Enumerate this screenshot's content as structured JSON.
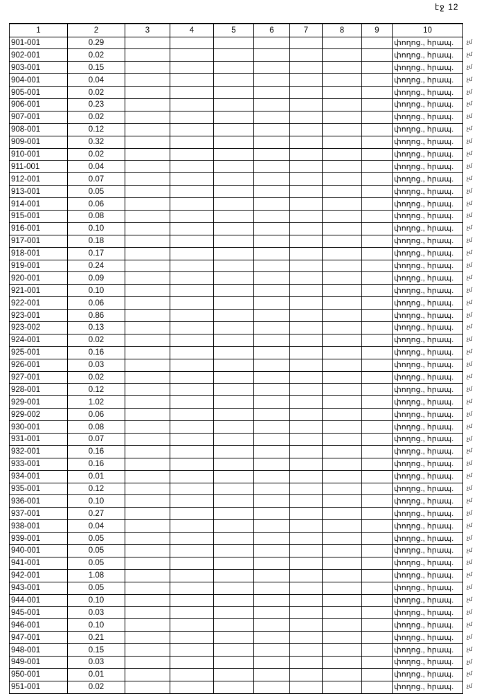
{
  "page_number": "էջ 12",
  "table": {
    "headers": [
      "1",
      "2",
      "3",
      "4",
      "5",
      "6",
      "7",
      "8",
      "9",
      "10"
    ],
    "col10_text": "փողոց., հրապ.",
    "margin_mark": "չմ",
    "rows": [
      [
        "901-001",
        "0.29"
      ],
      [
        "902-001",
        "0.02"
      ],
      [
        "903-001",
        "0.15"
      ],
      [
        "904-001",
        "0.04"
      ],
      [
        "905-001",
        "0.02"
      ],
      [
        "906-001",
        "0.23"
      ],
      [
        "907-001",
        "0.02"
      ],
      [
        "908-001",
        "0.12"
      ],
      [
        "909-001",
        "0.32"
      ],
      [
        "910-001",
        "0.02"
      ],
      [
        "911-001",
        "0.04"
      ],
      [
        "912-001",
        "0.07"
      ],
      [
        "913-001",
        "0.05"
      ],
      [
        "914-001",
        "0.06"
      ],
      [
        "915-001",
        "0.08"
      ],
      [
        "916-001",
        "0.10"
      ],
      [
        "917-001",
        "0.18"
      ],
      [
        "918-001",
        "0.17"
      ],
      [
        "919-001",
        "0.24"
      ],
      [
        "920-001",
        "0.09"
      ],
      [
        "921-001",
        "0.10"
      ],
      [
        "922-001",
        "0.06"
      ],
      [
        "923-001",
        "0.86"
      ],
      [
        "923-002",
        "0.13"
      ],
      [
        "924-001",
        "0.02"
      ],
      [
        "925-001",
        "0.16"
      ],
      [
        "926-001",
        "0.03"
      ],
      [
        "927-001",
        "0.02"
      ],
      [
        "928-001",
        "0.12"
      ],
      [
        "929-001",
        "1.02"
      ],
      [
        "929-002",
        "0.06"
      ],
      [
        "930-001",
        "0.08"
      ],
      [
        "931-001",
        "0.07"
      ],
      [
        "932-001",
        "0.16"
      ],
      [
        "933-001",
        "0.16"
      ],
      [
        "934-001",
        "0.01"
      ],
      [
        "935-001",
        "0.12"
      ],
      [
        "936-001",
        "0.10"
      ],
      [
        "937-001",
        "0.27"
      ],
      [
        "938-001",
        "0.04"
      ],
      [
        "939-001",
        "0.05"
      ],
      [
        "940-001",
        "0.05"
      ],
      [
        "941-001",
        "0.05"
      ],
      [
        "942-001",
        "1.08"
      ],
      [
        "943-001",
        "0.05"
      ],
      [
        "944-001",
        "0.10"
      ],
      [
        "945-001",
        "0.03"
      ],
      [
        "946-001",
        "0.10"
      ],
      [
        "947-001",
        "0.21"
      ],
      [
        "948-001",
        "0.15"
      ],
      [
        "949-001",
        "0.03"
      ],
      [
        "950-001",
        "0.01"
      ],
      [
        "951-001",
        "0.02"
      ]
    ]
  }
}
